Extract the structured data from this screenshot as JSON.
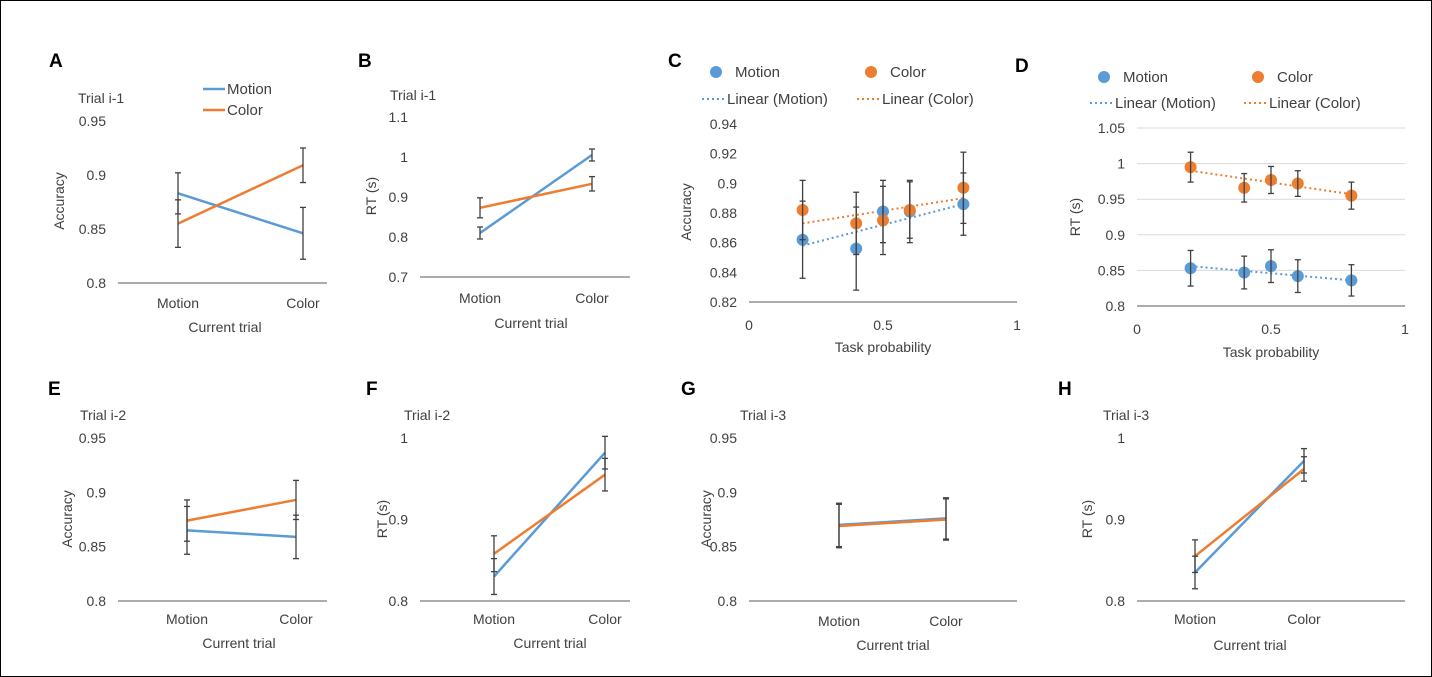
{
  "colors": {
    "motion": "#5B9BD5",
    "color": "#ED7D31",
    "errorbar": "#404040",
    "axis": "#595959",
    "text": "#404040",
    "grid": "#D9D9D9"
  },
  "chart_data": [
    {
      "panel": "A",
      "type": "line",
      "subtitle": "Trial i-1",
      "categories": [
        "Motion",
        "Color"
      ],
      "series": [
        {
          "name": "Motion",
          "values": [
            0.883,
            0.846
          ],
          "errors": [
            0.019,
            0.024
          ]
        },
        {
          "name": "Color",
          "values": [
            0.855,
            0.909
          ],
          "errors": [
            0.022,
            0.016
          ]
        }
      ],
      "legend_labels": [
        "Motion",
        "Color"
      ],
      "legend": "top",
      "xlabel": "Current trial",
      "ylabel": "Accuracy",
      "ylim": [
        0.8,
        0.95
      ],
      "ytick_labels": [
        "0.8",
        "0.85",
        "0.9",
        "0.95"
      ],
      "grid": false
    },
    {
      "panel": "B",
      "type": "line",
      "subtitle": "Trial i-1",
      "categories": [
        "Motion",
        "Color"
      ],
      "series": [
        {
          "name": "Motion",
          "values": [
            0.81,
            1.005
          ],
          "errors": [
            0.015,
            0.015
          ]
        },
        {
          "name": "Color",
          "values": [
            0.873,
            0.933
          ],
          "errors": [
            0.025,
            0.018
          ]
        }
      ],
      "xlabel": "Current trial",
      "ylabel": "RT (s)",
      "ylim": [
        0.7,
        1.1
      ],
      "ytick_labels": [
        "0.7",
        "0.8",
        "0.9",
        "1",
        "1.1"
      ],
      "grid": false
    },
    {
      "panel": "C",
      "type": "scatter",
      "series": [
        {
          "name": "Motion",
          "x": [
            0.2,
            0.4,
            0.5,
            0.6,
            0.8
          ],
          "values": [
            0.862,
            0.856,
            0.881,
            0.881,
            0.886
          ],
          "errors": [
            0.026,
            0.028,
            0.021,
            0.021,
            0.021
          ],
          "trend": [
            0.858,
            0.886
          ]
        },
        {
          "name": "Color",
          "x": [
            0.2,
            0.4,
            0.5,
            0.6,
            0.8
          ],
          "values": [
            0.882,
            0.873,
            0.875,
            0.882,
            0.897
          ],
          "errors": [
            0.02,
            0.021,
            0.023,
            0.019,
            0.024
          ],
          "trend": [
            0.873,
            0.89
          ]
        }
      ],
      "legend_labels": [
        "Motion",
        "Color",
        "Linear (Motion)",
        "Linear (Color)"
      ],
      "legend": "top",
      "xlabel": "Task probability",
      "ylabel": "Accuracy",
      "xlim": [
        0,
        1
      ],
      "xtick_labels": [
        "0",
        "0.5",
        "1"
      ],
      "ylim": [
        0.82,
        0.94
      ],
      "ytick_labels": [
        "0.82",
        "0.84",
        "0.86",
        "0.88",
        "0.9",
        "0.92",
        "0.94"
      ],
      "grid": false
    },
    {
      "panel": "D",
      "type": "scatter",
      "series": [
        {
          "name": "Motion",
          "x": [
            0.2,
            0.4,
            0.5,
            0.6,
            0.8
          ],
          "values": [
            0.853,
            0.847,
            0.856,
            0.842,
            0.836
          ],
          "errors": [
            0.025,
            0.023,
            0.023,
            0.023,
            0.022
          ],
          "trend": [
            0.856,
            0.836
          ]
        },
        {
          "name": "Color",
          "x": [
            0.2,
            0.4,
            0.5,
            0.6,
            0.8
          ],
          "values": [
            0.995,
            0.966,
            0.977,
            0.972,
            0.955
          ],
          "errors": [
            0.021,
            0.02,
            0.019,
            0.018,
            0.019
          ],
          "trend": [
            0.99,
            0.957
          ]
        }
      ],
      "legend_labels": [
        "Motion",
        "Color",
        "Linear (Motion)",
        "Linear (Color)"
      ],
      "legend": "top",
      "xlabel": "Task probability",
      "ylabel": "RT (s)",
      "xlim": [
        0,
        1
      ],
      "xtick_labels": [
        "0",
        "0.5",
        "1"
      ],
      "ylim": [
        0.8,
        1.05
      ],
      "ytick_labels": [
        "0.8",
        "0.85",
        "0.9",
        "0.95",
        "1",
        "1.05"
      ],
      "grid": true
    },
    {
      "panel": "E",
      "type": "line",
      "subtitle": "Trial i-2",
      "categories": [
        "Motion",
        "Color"
      ],
      "series": [
        {
          "name": "Motion",
          "values": [
            0.865,
            0.859
          ],
          "errors": [
            0.022,
            0.02
          ]
        },
        {
          "name": "Color",
          "values": [
            0.874,
            0.893
          ],
          "errors": [
            0.019,
            0.018
          ]
        }
      ],
      "xlabel": "Current trial",
      "ylabel": "Accuracy",
      "ylim": [
        0.8,
        0.95
      ],
      "ytick_labels": [
        "0.8",
        "0.85",
        "0.9",
        "0.95"
      ],
      "grid": false
    },
    {
      "panel": "F",
      "type": "line",
      "subtitle": "Trial i-2",
      "categories": [
        "Motion",
        "Color"
      ],
      "series": [
        {
          "name": "Motion",
          "values": [
            0.83,
            0.982
          ],
          "errors": [
            0.022,
            0.02
          ]
        },
        {
          "name": "Color",
          "values": [
            0.858,
            0.955
          ],
          "errors": [
            0.022,
            0.02
          ]
        }
      ],
      "xlabel": "Current trial",
      "ylabel": "RT (s)",
      "ylim": [
        0.8,
        1
      ],
      "ytick_labels": [
        "0.8",
        "0.9",
        "1"
      ],
      "grid": false
    },
    {
      "panel": "G",
      "type": "line",
      "subtitle": "Trial i-3",
      "categories": [
        "Motion",
        "Color"
      ],
      "series": [
        {
          "name": "Motion",
          "values": [
            0.87,
            0.876
          ],
          "errors": [
            0.02,
            0.019
          ]
        },
        {
          "name": "Color",
          "values": [
            0.869,
            0.875
          ],
          "errors": [
            0.02,
            0.019
          ]
        }
      ],
      "xlabel": "Current trial",
      "ylabel": "Accuracy",
      "ylim": [
        0.8,
        0.95
      ],
      "ytick_labels": [
        "0.8",
        "0.85",
        "0.9",
        "0.95"
      ],
      "grid": false
    },
    {
      "panel": "H",
      "type": "line",
      "subtitle": "Trial i-3",
      "categories": [
        "Motion",
        "Color"
      ],
      "series": [
        {
          "name": "Motion",
          "values": [
            0.835,
            0.972
          ],
          "errors": [
            0.02,
            0.015
          ]
        },
        {
          "name": "Color",
          "values": [
            0.855,
            0.962
          ],
          "errors": [
            0.02,
            0.015
          ]
        }
      ],
      "xlabel": "Current trial",
      "ylabel": "RT (s)",
      "ylim": [
        0.8,
        1
      ],
      "ytick_labels": [
        "0.8",
        "0.9",
        "1"
      ],
      "grid": false
    }
  ]
}
